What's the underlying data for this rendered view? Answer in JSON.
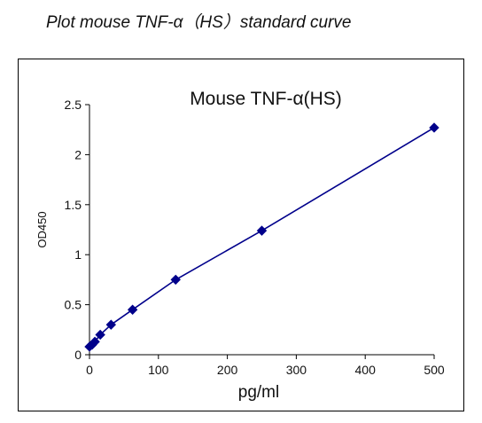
{
  "page": {
    "title": "Plot mouse TNF-α（HS）standard curve"
  },
  "chart_data": {
    "type": "line",
    "title": "Mouse TNF-α(HS)",
    "xlabel": "pg/ml",
    "ylabel": "OD450",
    "xlim": [
      0,
      500
    ],
    "ylim": [
      0,
      2.5
    ],
    "x_ticks": [
      "0",
      "100",
      "200",
      "300",
      "400",
      "500"
    ],
    "y_ticks": [
      "0",
      "0.5",
      "1",
      "1.5",
      "2",
      "2.5"
    ],
    "grid": false,
    "legend": "none",
    "series": [
      {
        "color": "#00008b",
        "marker": "diamond",
        "points": [
          {
            "x": 0,
            "y": 0.08
          },
          {
            "x": 3.9,
            "y": 0.1
          },
          {
            "x": 7.8,
            "y": 0.13
          },
          {
            "x": 15.6,
            "y": 0.2
          },
          {
            "x": 31.25,
            "y": 0.3
          },
          {
            "x": 62.5,
            "y": 0.45
          },
          {
            "x": 125,
            "y": 0.75
          },
          {
            "x": 250,
            "y": 1.24
          },
          {
            "x": 500,
            "y": 2.27
          }
        ]
      }
    ]
  }
}
